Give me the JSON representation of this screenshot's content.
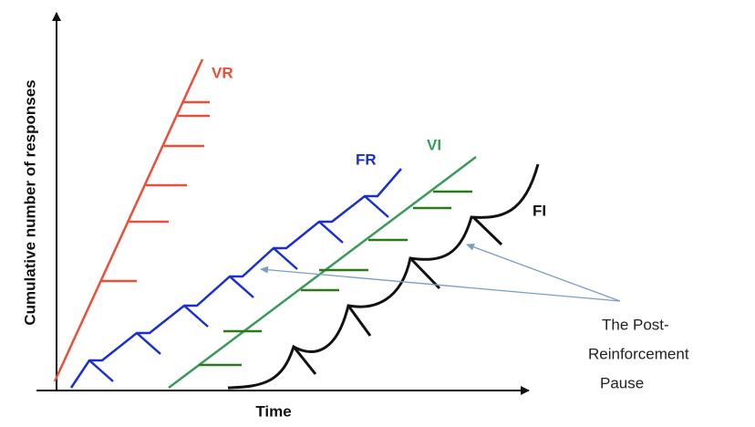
{
  "axes": {
    "y_label": "Cumulative number of responses",
    "x_label": "Time"
  },
  "curves": {
    "vr": "VR",
    "fr": "FR",
    "vi": "VI",
    "fi": "FI"
  },
  "annotation": {
    "lines": [
      "The Post-",
      "Reinforcement",
      "Pause"
    ]
  }
}
